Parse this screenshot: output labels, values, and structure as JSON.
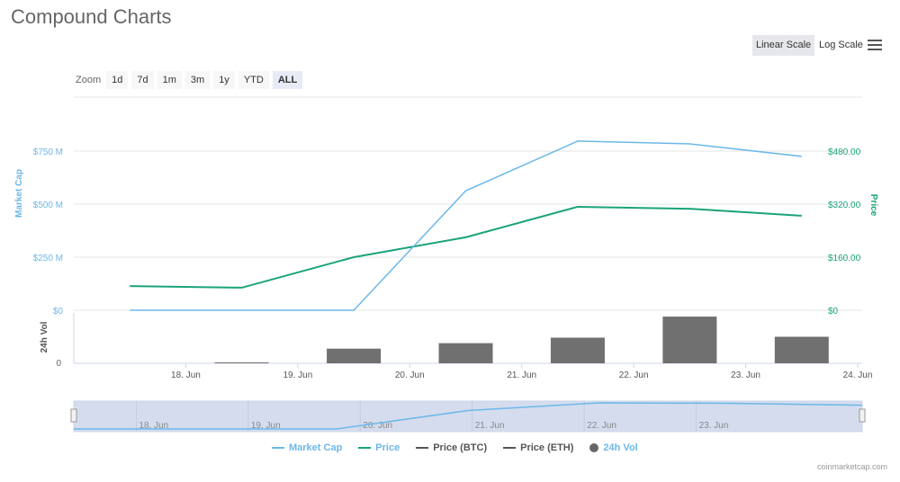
{
  "title": "Compound Charts",
  "scale_buttons": {
    "linear": "Linear Scale",
    "log": "Log Scale"
  },
  "zoom": {
    "label": "Zoom",
    "options": [
      "1d",
      "7d",
      "1m",
      "3m",
      "1y",
      "YTD",
      "ALL"
    ],
    "active": "ALL"
  },
  "legend": [
    {
      "label": "Market Cap",
      "color": "#6cb8e8"
    },
    {
      "label": "Price",
      "color": "#1aa37a"
    },
    {
      "label": "Price (BTC)",
      "color": "#555555"
    },
    {
      "label": "Price (ETH)",
      "color": "#555555"
    },
    {
      "label": "24h Vol",
      "color": "#666666"
    }
  ],
  "credit": "coinmarketcap.com",
  "chart_data": {
    "type": "line",
    "x_ticks": [
      "18. Jun",
      "19. Jun",
      "20. Jun",
      "21. Jun",
      "22. Jun",
      "23. Jun",
      "24. Jun"
    ],
    "x_tick_days": [
      18,
      19,
      20,
      21,
      22,
      23,
      24
    ],
    "xlim": [
      17,
      24.04
    ],
    "x_days": [
      17.5,
      18.5,
      19.5,
      20.5,
      21.5,
      22.5,
      23.5
    ],
    "series": [
      {
        "name": "Market Cap",
        "axis": "left",
        "unit": "M USD",
        "values": [
          0,
          0,
          0,
          563,
          797,
          784,
          725
        ],
        "color": "#6cb8e8"
      },
      {
        "name": "Price",
        "axis": "right",
        "unit": "USD",
        "values": [
          73,
          68,
          160,
          220,
          312,
          306,
          285
        ],
        "color": "#1aa37a"
      },
      {
        "name": "24h Vol",
        "axis": "volume",
        "type": "bar",
        "values": [
          0,
          1,
          16,
          22,
          28,
          51,
          29
        ],
        "color": "#707070"
      }
    ],
    "left_axis": {
      "label": "Market Cap",
      "ticks": [
        "$0",
        "$250 M",
        "$500 M",
        "$750 M"
      ],
      "tick_values": [
        0,
        250,
        500,
        750
      ],
      "ylim": [
        0,
        750
      ]
    },
    "right_axis": {
      "label": "Price",
      "ticks": [
        "$0",
        "$160.00",
        "$320.00",
        "$480.00"
      ],
      "tick_values": [
        0,
        160,
        320,
        480
      ],
      "ylim": [
        0,
        480
      ]
    },
    "volume_axis": {
      "label": "24h Vol",
      "ticks": [
        "0"
      ],
      "ylim": [
        0,
        55
      ]
    },
    "navigator_ticks": [
      "18. Jun",
      "19. Jun",
      "20. Jun",
      "21. Jun",
      "22. Jun",
      "23. Jun"
    ]
  }
}
